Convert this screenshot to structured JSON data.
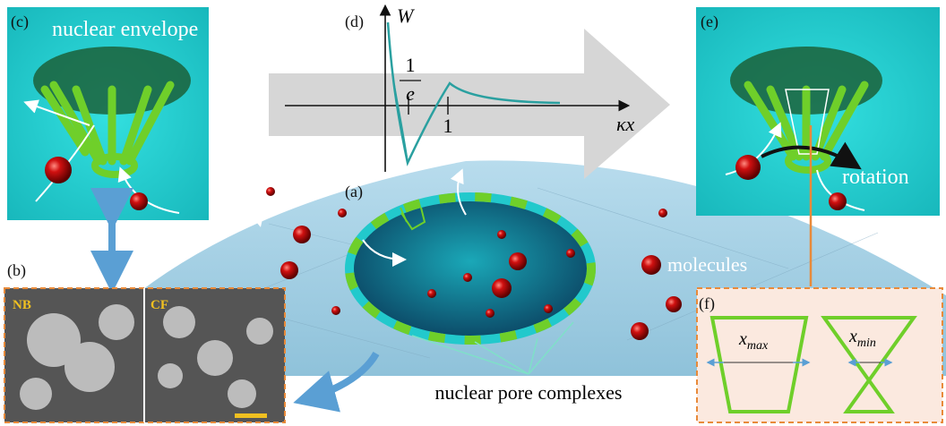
{
  "panel_a": {
    "label": "(a)",
    "molecules_label": "molecules",
    "pores_label": "nuclear pore complexes"
  },
  "panel_b": {
    "label": "(b)",
    "left_tag": "NB",
    "right_tag": "CF"
  },
  "panel_c": {
    "label": "(c)",
    "title": "nuclear envelope"
  },
  "panel_d": {
    "label": "(d)",
    "y_axis": "W",
    "x_axis": "κx",
    "tick_one": "1",
    "fraction_numerator": "1",
    "fraction_denominator": "e"
  },
  "panel_e": {
    "label": "(e)",
    "annotation": "rotation"
  },
  "panel_f": {
    "label": "(f)",
    "left_width": {
      "base": "x",
      "sub": "max"
    },
    "right_width": {
      "base": "x",
      "sub": "min"
    }
  }
}
